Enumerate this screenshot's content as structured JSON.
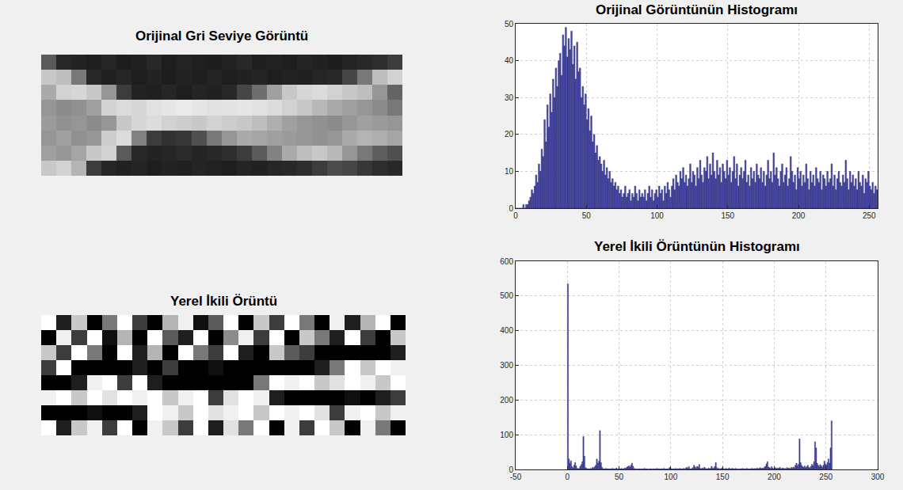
{
  "chart_data": [
    {
      "type": "image",
      "title": "Orijinal Gri Seviye Görüntü",
      "tick_labels": false,
      "color_range": [
        0,
        255
      ],
      "cells": [
        [
          90,
          40,
          35,
          30,
          38,
          28,
          33,
          40,
          30,
          36,
          32,
          29,
          35,
          40,
          31,
          34,
          30,
          37,
          33,
          29,
          36,
          40,
          45,
          60
        ],
        [
          200,
          190,
          120,
          40,
          33,
          38,
          30,
          35,
          29,
          34,
          31,
          37,
          30,
          33,
          36,
          30,
          35,
          32,
          38,
          40,
          70,
          120,
          190,
          210
        ],
        [
          170,
          210,
          215,
          200,
          150,
          60,
          35,
          32,
          38,
          30,
          36,
          33,
          40,
          70,
          110,
          160,
          200,
          215,
          220,
          210,
          200,
          190,
          150,
          100
        ],
        [
          150,
          140,
          145,
          160,
          210,
          220,
          215,
          225,
          230,
          235,
          230,
          225,
          228,
          230,
          225,
          220,
          210,
          200,
          185,
          170,
          160,
          150,
          140,
          120
        ],
        [
          155,
          145,
          150,
          140,
          150,
          200,
          215,
          220,
          210,
          205,
          200,
          210,
          205,
          200,
          190,
          175,
          160,
          150,
          145,
          140,
          150,
          160,
          155,
          150
        ],
        [
          150,
          160,
          145,
          150,
          205,
          220,
          130,
          60,
          50,
          55,
          80,
          120,
          150,
          170,
          165,
          160,
          155,
          150,
          145,
          150,
          170,
          180,
          175,
          165
        ],
        [
          160,
          150,
          165,
          200,
          210,
          90,
          40,
          35,
          38,
          42,
          36,
          40,
          45,
          60,
          90,
          130,
          170,
          190,
          200,
          185,
          150,
          120,
          95,
          80
        ],
        [
          200,
          210,
          180,
          60,
          38,
          33,
          36,
          30,
          35,
          32,
          37,
          34,
          30,
          36,
          33,
          38,
          40,
          45,
          60,
          75,
          70,
          55,
          45,
          40
        ]
      ]
    },
    {
      "type": "histogram",
      "title": "Orijinal Görüntünün Histogramı",
      "color": "#4646a6",
      "grid": true,
      "xlim": [
        0,
        256
      ],
      "xticks": [
        0,
        50,
        100,
        150,
        200,
        250
      ],
      "ylim": [
        0,
        50
      ],
      "yticks": [
        0,
        10,
        20,
        30,
        40,
        50
      ],
      "bins": [
        0,
        1,
        2,
        3,
        4,
        5,
        6,
        7,
        8,
        9,
        10,
        11,
        12,
        13,
        14,
        15,
        16,
        17,
        18,
        19,
        20,
        21,
        22,
        23,
        24,
        25,
        26,
        27,
        28,
        29,
        30,
        31,
        32,
        33,
        34,
        35,
        36,
        37,
        38,
        39,
        40,
        41,
        42,
        43,
        44,
        45,
        46,
        47,
        48,
        49,
        50,
        51,
        52,
        53,
        54,
        55,
        56,
        57,
        58,
        59,
        60,
        61,
        62,
        63,
        64,
        65,
        66,
        67,
        68,
        69,
        70,
        71,
        72,
        73,
        74,
        75,
        76,
        77,
        78,
        79,
        80,
        81,
        82,
        83,
        84,
        85,
        86,
        87,
        88,
        89,
        90,
        91,
        92,
        93,
        94,
        95,
        96,
        97,
        98,
        99,
        100,
        101,
        102,
        103,
        104,
        105,
        106,
        107,
        108,
        109,
        110,
        111,
        112,
        113,
        114,
        115,
        116,
        117,
        118,
        119,
        120,
        121,
        122,
        123,
        124,
        125,
        126,
        127,
        128,
        129,
        130,
        131,
        132,
        133,
        134,
        135,
        136,
        137,
        138,
        139,
        140,
        141,
        142,
        143,
        144,
        145,
        146,
        147,
        148,
        149,
        150,
        151,
        152,
        153,
        154,
        155,
        156,
        157,
        158,
        159,
        160,
        161,
        162,
        163,
        164,
        165,
        166,
        167,
        168,
        169,
        170,
        171,
        172,
        173,
        174,
        175,
        176,
        177,
        178,
        179,
        180,
        181,
        182,
        183,
        184,
        185,
        186,
        187,
        188,
        189,
        190,
        191,
        192,
        193,
        194,
        195,
        196,
        197,
        198,
        199,
        200,
        201,
        202,
        203,
        204,
        205,
        206,
        207,
        208,
        209,
        210,
        211,
        212,
        213,
        214,
        215,
        216,
        217,
        218,
        219,
        220,
        221,
        222,
        223,
        224,
        225,
        226,
        227,
        228,
        229,
        230,
        231,
        232,
        233,
        234,
        235,
        236,
        237,
        238,
        239,
        240,
        241,
        242,
        243,
        244,
        245,
        246,
        247,
        248,
        249,
        250,
        251,
        252,
        253,
        254,
        255,
        256
      ],
      "values": [
        0,
        0,
        0,
        0,
        0,
        1,
        0,
        1,
        1,
        2,
        3,
        5,
        4,
        6,
        9,
        7,
        12,
        10,
        16,
        14,
        24,
        18,
        28,
        22,
        31,
        26,
        35,
        30,
        38,
        33,
        40,
        42,
        36,
        47,
        44,
        49,
        41,
        46,
        43,
        48,
        39,
        44,
        35,
        45,
        37,
        38,
        30,
        33,
        28,
        31,
        24,
        27,
        21,
        25,
        18,
        20,
        15,
        17,
        13,
        14,
        12,
        10,
        13,
        9,
        11,
        8,
        10,
        7,
        8,
        6,
        7,
        5,
        6,
        4,
        5,
        3,
        4,
        6,
        3,
        4,
        5,
        2,
        4,
        3,
        6,
        4,
        2,
        5,
        3,
        4,
        3,
        5,
        2,
        4,
        6,
        3,
        5,
        2,
        4,
        5,
        3,
        6,
        4,
        5,
        2,
        6,
        4,
        7,
        5,
        3,
        6,
        8,
        5,
        9,
        7,
        6,
        10,
        8,
        11,
        7,
        9,
        6,
        8,
        12,
        7,
        10,
        9,
        6,
        11,
        8,
        13,
        9,
        7,
        11,
        10,
        14,
        8,
        12,
        9,
        15,
        10,
        8,
        13,
        9,
        11,
        7,
        12,
        10,
        8,
        13,
        9,
        11,
        7,
        10,
        14,
        8,
        12,
        6,
        9,
        11,
        8,
        10,
        13,
        7,
        9,
        6,
        11,
        8,
        10,
        7,
        12,
        9,
        8,
        11,
        7,
        10,
        6,
        9,
        13,
        8,
        10,
        7,
        15,
        9,
        11,
        8,
        6,
        10,
        12,
        7,
        9,
        11,
        6,
        8,
        14,
        10,
        7,
        9,
        5,
        11,
        8,
        10,
        6,
        9,
        7,
        12,
        8,
        5,
        10,
        7,
        9,
        6,
        11,
        8,
        7,
        10,
        5,
        9,
        8,
        6,
        10,
        7,
        8,
        12,
        6,
        9,
        5,
        8,
        10,
        7,
        6,
        9,
        7,
        13,
        8,
        5,
        10,
        7,
        9,
        6,
        8,
        5,
        10,
        7,
        6,
        9,
        4,
        8,
        7,
        10,
        6,
        5,
        7,
        4,
        6,
        5
      ]
    },
    {
      "type": "image",
      "title": "Yerel İkili Örüntü",
      "tick_labels": false,
      "color_range": [
        0,
        255
      ],
      "cells": [
        [
          255,
          30,
          200,
          0,
          120,
          255,
          60,
          0,
          180,
          240,
          15,
          90,
          255,
          0,
          200,
          60,
          255,
          120,
          0,
          240,
          30,
          180,
          255,
          0
        ],
        [
          0,
          240,
          60,
          255,
          15,
          180,
          0,
          255,
          90,
          30,
          255,
          0,
          140,
          240,
          60,
          255,
          0,
          200,
          120,
          30,
          255,
          60,
          0,
          200
        ],
        [
          200,
          60,
          255,
          120,
          0,
          255,
          30,
          180,
          0,
          255,
          120,
          60,
          255,
          30,
          0,
          200,
          90,
          60,
          0,
          0,
          0,
          0,
          0,
          30
        ],
        [
          60,
          255,
          0,
          0,
          0,
          0,
          30,
          0,
          60,
          0,
          0,
          15,
          0,
          0,
          0,
          0,
          0,
          0,
          30,
          120,
          255,
          200,
          255,
          240
        ],
        [
          0,
          0,
          30,
          240,
          255,
          60,
          255,
          30,
          0,
          0,
          0,
          0,
          0,
          0,
          120,
          255,
          240,
          255,
          200,
          225,
          255,
          240,
          200,
          255
        ],
        [
          240,
          255,
          200,
          255,
          225,
          255,
          240,
          255,
          200,
          240,
          255,
          60,
          225,
          255,
          240,
          30,
          0,
          0,
          0,
          0,
          15,
          0,
          30,
          60
        ],
        [
          0,
          0,
          0,
          15,
          0,
          0,
          30,
          255,
          240,
          200,
          255,
          225,
          240,
          255,
          200,
          255,
          240,
          255,
          225,
          60,
          240,
          255,
          200,
          240
        ],
        [
          255,
          30,
          200,
          240,
          60,
          255,
          0,
          240,
          200,
          60,
          255,
          30,
          225,
          120,
          255,
          0,
          240,
          60,
          255,
          200,
          0,
          240,
          120,
          0
        ]
      ]
    },
    {
      "type": "histogram",
      "title": "Yerel İkili Örüntünün Histogramı",
      "color": "#4646a6",
      "grid": true,
      "xlim": [
        -50,
        300
      ],
      "xticks": [
        -50,
        0,
        50,
        100,
        150,
        200,
        250,
        300
      ],
      "ylim": [
        0,
        600
      ],
      "yticks": [
        0,
        100,
        200,
        300,
        400,
        500,
        600
      ],
      "bins": [
        0,
        1,
        2,
        3,
        4,
        5,
        6,
        7,
        8,
        9,
        10,
        11,
        12,
        13,
        14,
        15,
        16,
        17,
        18,
        19,
        20,
        21,
        22,
        23,
        24,
        25,
        26,
        27,
        28,
        29,
        30,
        31,
        32,
        33,
        34,
        35,
        36,
        37,
        38,
        39,
        40,
        41,
        42,
        43,
        44,
        45,
        46,
        47,
        48,
        49,
        50,
        51,
        52,
        53,
        54,
        55,
        56,
        57,
        58,
        59,
        60,
        61,
        62,
        63,
        64,
        65,
        66,
        67,
        68,
        69,
        70,
        71,
        72,
        73,
        74,
        75,
        76,
        77,
        78,
        79,
        80,
        81,
        82,
        83,
        84,
        85,
        86,
        87,
        88,
        89,
        90,
        91,
        92,
        93,
        94,
        95,
        96,
        97,
        98,
        99,
        100,
        101,
        102,
        103,
        104,
        105,
        106,
        107,
        108,
        109,
        110,
        111,
        112,
        113,
        114,
        115,
        116,
        117,
        118,
        119,
        120,
        121,
        122,
        123,
        124,
        125,
        126,
        127,
        128,
        129,
        130,
        131,
        132,
        133,
        134,
        135,
        136,
        137,
        138,
        139,
        140,
        141,
        142,
        143,
        144,
        145,
        146,
        147,
        148,
        149,
        150,
        151,
        152,
        153,
        154,
        155,
        156,
        157,
        158,
        159,
        160,
        161,
        162,
        163,
        164,
        165,
        166,
        167,
        168,
        169,
        170,
        171,
        172,
        173,
        174,
        175,
        176,
        177,
        178,
        179,
        180,
        181,
        182,
        183,
        184,
        185,
        186,
        187,
        188,
        189,
        190,
        191,
        192,
        193,
        194,
        195,
        196,
        197,
        198,
        199,
        200,
        201,
        202,
        203,
        204,
        205,
        206,
        207,
        208,
        209,
        210,
        211,
        212,
        213,
        214,
        215,
        216,
        217,
        218,
        219,
        220,
        221,
        222,
        223,
        224,
        225,
        226,
        227,
        228,
        229,
        230,
        231,
        232,
        233,
        234,
        235,
        236,
        237,
        238,
        239,
        240,
        241,
        242,
        243,
        244,
        245,
        246,
        247,
        248,
        249,
        250,
        251,
        252,
        253,
        254,
        255,
        256
      ],
      "values": [
        535,
        30,
        18,
        25,
        8,
        4,
        12,
        20,
        10,
        3,
        2,
        3,
        9,
        14,
        22,
        95,
        38,
        5,
        3,
        2,
        2,
        1,
        3,
        2,
        6,
        4,
        8,
        12,
        30,
        18,
        24,
        112,
        20,
        6,
        2,
        1,
        2,
        3,
        1,
        2,
        1,
        2,
        1,
        3,
        2,
        1,
        2,
        4,
        1,
        2,
        1,
        2,
        3,
        1,
        2,
        4,
        3,
        6,
        8,
        10,
        6,
        12,
        18,
        9,
        3,
        1,
        2,
        1,
        1,
        2,
        1,
        1,
        2,
        1,
        3,
        1,
        2,
        1,
        1,
        1,
        2,
        1,
        1,
        2,
        1,
        1,
        3,
        1,
        2,
        1,
        1,
        2,
        1,
        3,
        1,
        1,
        2,
        1,
        4,
        6,
        2,
        1,
        2,
        1,
        3,
        1,
        2,
        1,
        3,
        2,
        1,
        2,
        3,
        1,
        4,
        6,
        3,
        8,
        2,
        1,
        3,
        5,
        12,
        7,
        4,
        9,
        6,
        14,
        3,
        2,
        4,
        2,
        6,
        3,
        2,
        1,
        4,
        2,
        3,
        9,
        3,
        4,
        8,
        20,
        5,
        2,
        3,
        1,
        2,
        4,
        3,
        1,
        2,
        3,
        1,
        2,
        4,
        1,
        2,
        3,
        2,
        1,
        3,
        1,
        2,
        1,
        1,
        2,
        1,
        3,
        1,
        2,
        1,
        3,
        2,
        1,
        2,
        1,
        3,
        2,
        2,
        3,
        1,
        4,
        2,
        3,
        5,
        2,
        4,
        3,
        6,
        9,
        16,
        22,
        7,
        5,
        3,
        8,
        4,
        2,
        3,
        5,
        2,
        4,
        3,
        6,
        2,
        3,
        4,
        2,
        3,
        2,
        5,
        3,
        4,
        2,
        6,
        3,
        7,
        4,
        12,
        18,
        10,
        15,
        88,
        20,
        12,
        8,
        6,
        10,
        5,
        8,
        12,
        6,
        4,
        9,
        15,
        10,
        22,
        80,
        62,
        18,
        12,
        8,
        14,
        10,
        6,
        12,
        24,
        16,
        12,
        20,
        30,
        18,
        62,
        140
      ]
    }
  ]
}
